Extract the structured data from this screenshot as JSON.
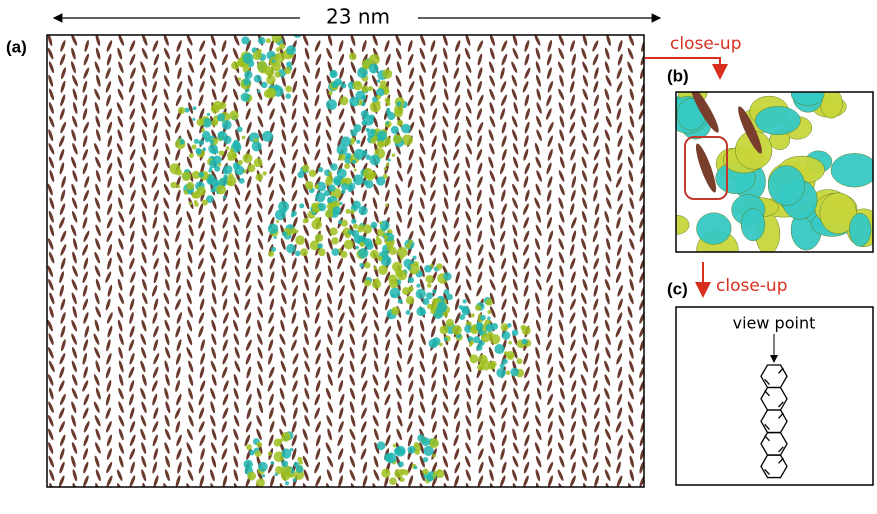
{
  "scale_label": "23 nm",
  "panels": [
    {
      "label": "(a)"
    },
    {
      "label": "(b)",
      "caption": "close-up"
    },
    {
      "label": "(c)",
      "caption": "close-up",
      "annotation": "view point"
    }
  ]
}
